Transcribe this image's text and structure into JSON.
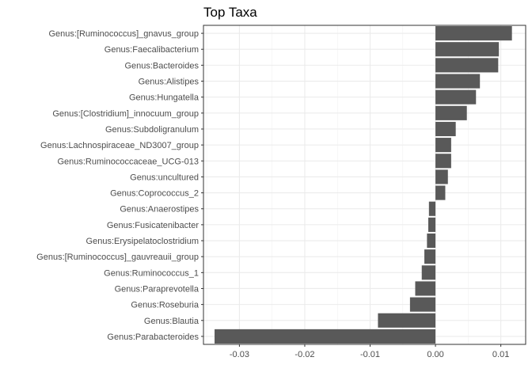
{
  "chart_data": {
    "type": "bar",
    "orientation": "horizontal",
    "title": "Top Taxa",
    "xlabel": "",
    "ylabel": "",
    "xlim": [
      -0.0355,
      0.0138
    ],
    "x_ticks": [
      -0.03,
      -0.02,
      -0.01,
      0.0,
      0.01
    ],
    "x_tick_labels": [
      "-0.03",
      "-0.02",
      "-0.01",
      "0.00",
      "0.01"
    ],
    "grid": true,
    "bar_color": "#595959",
    "categories": [
      "Genus:[Ruminococcus]_gnavus_group",
      "Genus:Faecalibacterium",
      "Genus:Bacteroides",
      "Genus:Alistipes",
      "Genus:Hungatella",
      "Genus:[Clostridium]_innocuum_group",
      "Genus:Subdoligranulum",
      "Genus:Lachnospiraceae_ND3007_group",
      "Genus:Ruminococcaceae_UCG-013",
      "Genus:uncultured",
      "Genus:Coprococcus_2",
      "Genus:Anaerostipes",
      "Genus:Fusicatenibacter",
      "Genus:Erysipelatoclostridium",
      "Genus:[Ruminococcus]_gauvreauii_group",
      "Genus:Ruminococcus_1",
      "Genus:Paraprevotella",
      "Genus:Roseburia",
      "Genus:Blautia",
      "Genus:Parabacteroides"
    ],
    "values": [
      0.0117,
      0.0097,
      0.0096,
      0.0068,
      0.0062,
      0.0048,
      0.0031,
      0.0024,
      0.0024,
      0.0019,
      0.0015,
      -0.001,
      -0.0011,
      -0.0013,
      -0.0017,
      -0.0021,
      -0.0031,
      -0.0039,
      -0.0088,
      -0.0338
    ]
  }
}
